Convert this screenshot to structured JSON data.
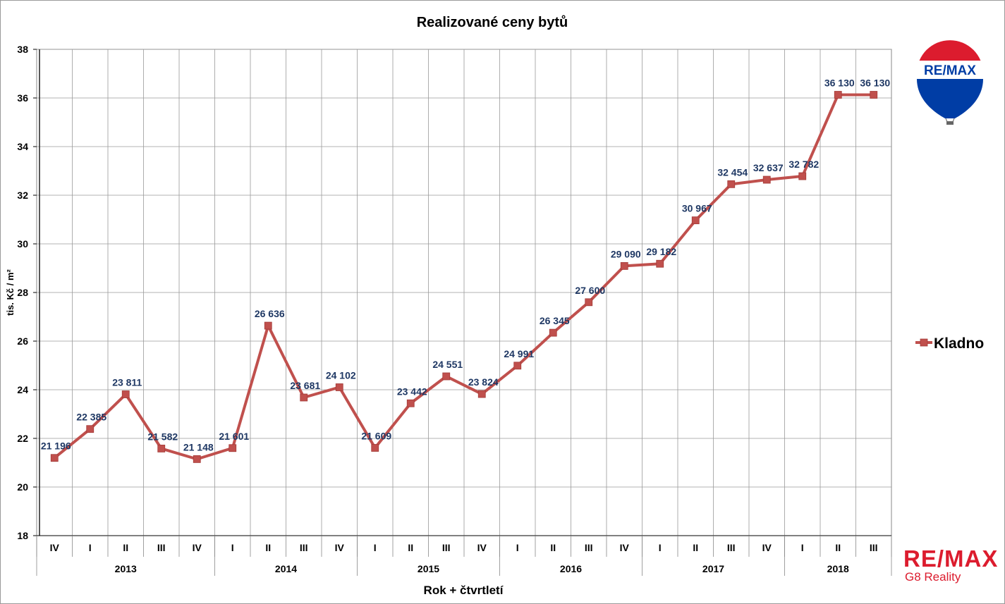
{
  "chart_data": {
    "type": "line",
    "title": "Realizované ceny bytů",
    "xlabel": "Rok + čtvrtletí",
    "ylabel": "tis. Kč / m²",
    "ylim": [
      18,
      38
    ],
    "yticks": [
      18,
      20,
      22,
      24,
      26,
      28,
      30,
      32,
      34,
      36,
      38
    ],
    "grid": true,
    "legend_position": "right",
    "quarters": [
      "IV",
      "I",
      "II",
      "III",
      "IV",
      "I",
      "II",
      "III",
      "IV",
      "I",
      "II",
      "III",
      "IV",
      "I",
      "II",
      "III",
      "IV",
      "I",
      "II",
      "III",
      "IV",
      "I",
      "II",
      "III"
    ],
    "years": [
      {
        "label": "2013",
        "count": 5
      },
      {
        "label": "2014",
        "count": 4
      },
      {
        "label": "2015",
        "count": 4
      },
      {
        "label": "2016",
        "count": 4
      },
      {
        "label": "2017",
        "count": 4
      },
      {
        "label": "2018",
        "count": 3
      }
    ],
    "series": [
      {
        "name": "Kladno",
        "color": "#c0504d",
        "values": [
          21.196,
          22.385,
          23.811,
          21.582,
          21.148,
          21.601,
          26.636,
          23.681,
          24.102,
          21.609,
          23.442,
          24.551,
          23.824,
          24.991,
          26.345,
          27.6,
          29.09,
          29.182,
          30.967,
          32.454,
          32.637,
          32.782,
          36.13,
          36.13
        ],
        "labels": [
          "21 196",
          "22 385",
          "23 811",
          "21 582",
          "21 148",
          "21 601",
          "26 636",
          "23 681",
          "24 102",
          "21 609",
          "23 442",
          "24 551",
          "23 824",
          "24 991",
          "26 345",
          "27 600",
          "29 090",
          "29 182",
          "30 967",
          "32 454",
          "32 637",
          "32 782",
          "36 130",
          "36 130"
        ]
      }
    ]
  },
  "branding": {
    "balloon_text": "RE/MAX",
    "logo_text": "RE/MAX",
    "logo_subtext": "G8 Reality",
    "brand_red": "#dc1c2e",
    "brand_blue": "#003da5"
  },
  "colors": {
    "label_color": "#1f3864",
    "grid_color": "#9a9a9a"
  }
}
